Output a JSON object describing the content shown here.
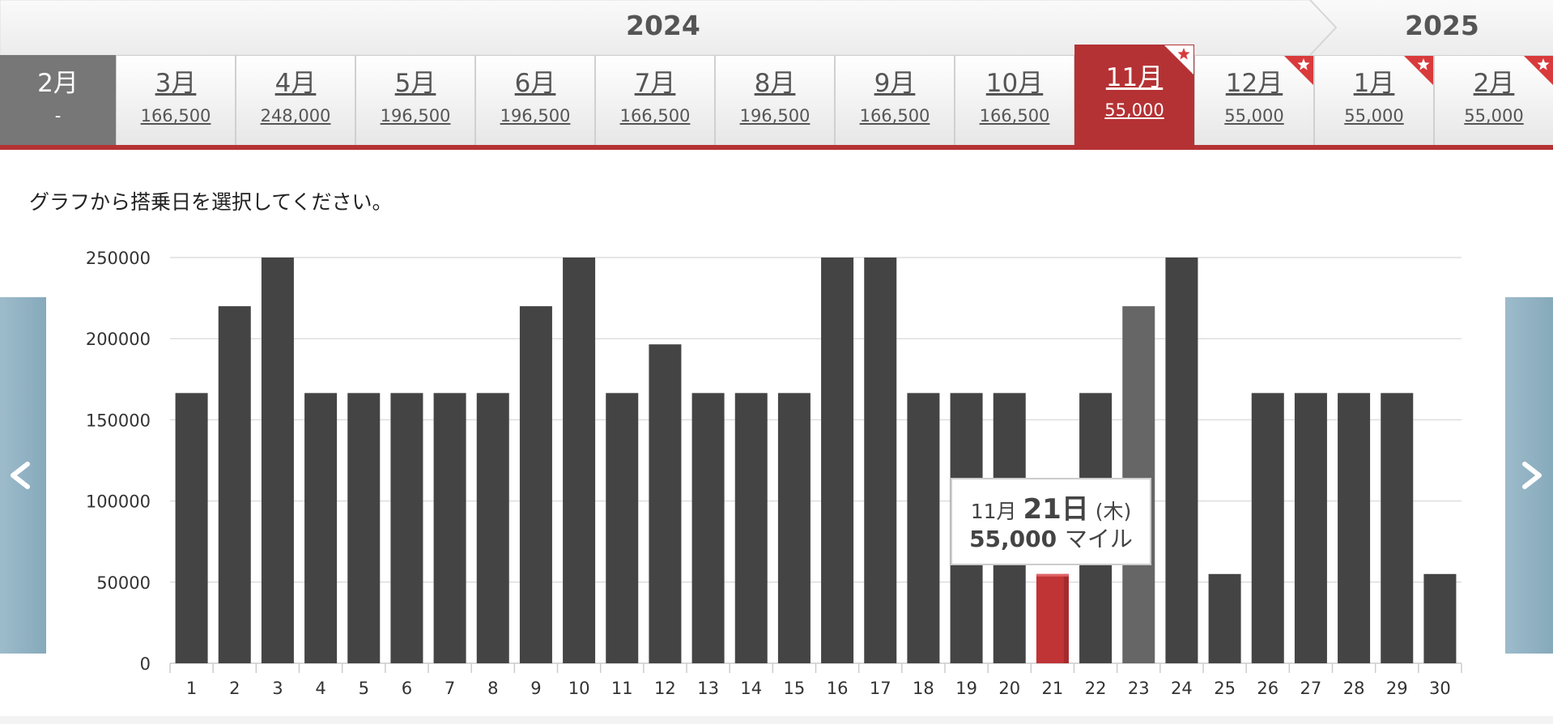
{
  "years": {
    "left": "2024",
    "right": "2025"
  },
  "months": [
    {
      "label": "2月",
      "price": "-",
      "state": "disabled",
      "award": false
    },
    {
      "label": "3月",
      "price": "166,500",
      "state": "normal",
      "award": false
    },
    {
      "label": "4月",
      "price": "248,000",
      "state": "normal",
      "award": false
    },
    {
      "label": "5月",
      "price": "196,500",
      "state": "normal",
      "award": false
    },
    {
      "label": "6月",
      "price": "196,500",
      "state": "normal",
      "award": false
    },
    {
      "label": "7月",
      "price": "166,500",
      "state": "normal",
      "award": false
    },
    {
      "label": "8月",
      "price": "196,500",
      "state": "normal",
      "award": false
    },
    {
      "label": "9月",
      "price": "166,500",
      "state": "normal",
      "award": false
    },
    {
      "label": "10月",
      "price": "166,500",
      "state": "normal",
      "award": false
    },
    {
      "label": "11月",
      "price": "55,000",
      "state": "selected",
      "award": true
    },
    {
      "label": "12月",
      "price": "55,000",
      "state": "normal",
      "award": true
    },
    {
      "label": "1月",
      "price": "55,000",
      "state": "normal",
      "award": true
    },
    {
      "label": "2月",
      "price": "55,000",
      "state": "normal",
      "award": true
    }
  ],
  "instruction": "グラフから搭乗日を選択してください。",
  "nav": {
    "prev_icon": "chevron-left-icon",
    "next_icon": "chevron-right-icon"
  },
  "tooltip": {
    "month": "11月",
    "day": "21日",
    "weekday": "(木)",
    "miles": "55,000",
    "unit": "マイル"
  },
  "colors": {
    "bar": "#444444",
    "selected_bar": "#c13436",
    "hover_bar": "#666666",
    "accent": "#b53234"
  },
  "chart_data": {
    "type": "bar",
    "categories": [
      "1",
      "2",
      "3",
      "4",
      "5",
      "6",
      "7",
      "8",
      "9",
      "10",
      "11",
      "12",
      "13",
      "14",
      "15",
      "16",
      "17",
      "18",
      "19",
      "20",
      "21",
      "22",
      "23",
      "24",
      "25",
      "26",
      "27",
      "28",
      "29",
      "30"
    ],
    "values": [
      166500,
      220000,
      250000,
      166500,
      166500,
      166500,
      166500,
      166500,
      220000,
      250000,
      166500,
      196500,
      166500,
      166500,
      166500,
      250000,
      250000,
      166500,
      166500,
      166500,
      55000,
      166500,
      220000,
      250000,
      55000,
      166500,
      166500,
      166500,
      166500,
      55000
    ],
    "selected_index": 20,
    "hover_index": 22,
    "ylim": [
      0,
      250000
    ],
    "yticks": [
      0,
      50000,
      100000,
      150000,
      200000,
      250000
    ],
    "grid": true,
    "legend": "none"
  }
}
